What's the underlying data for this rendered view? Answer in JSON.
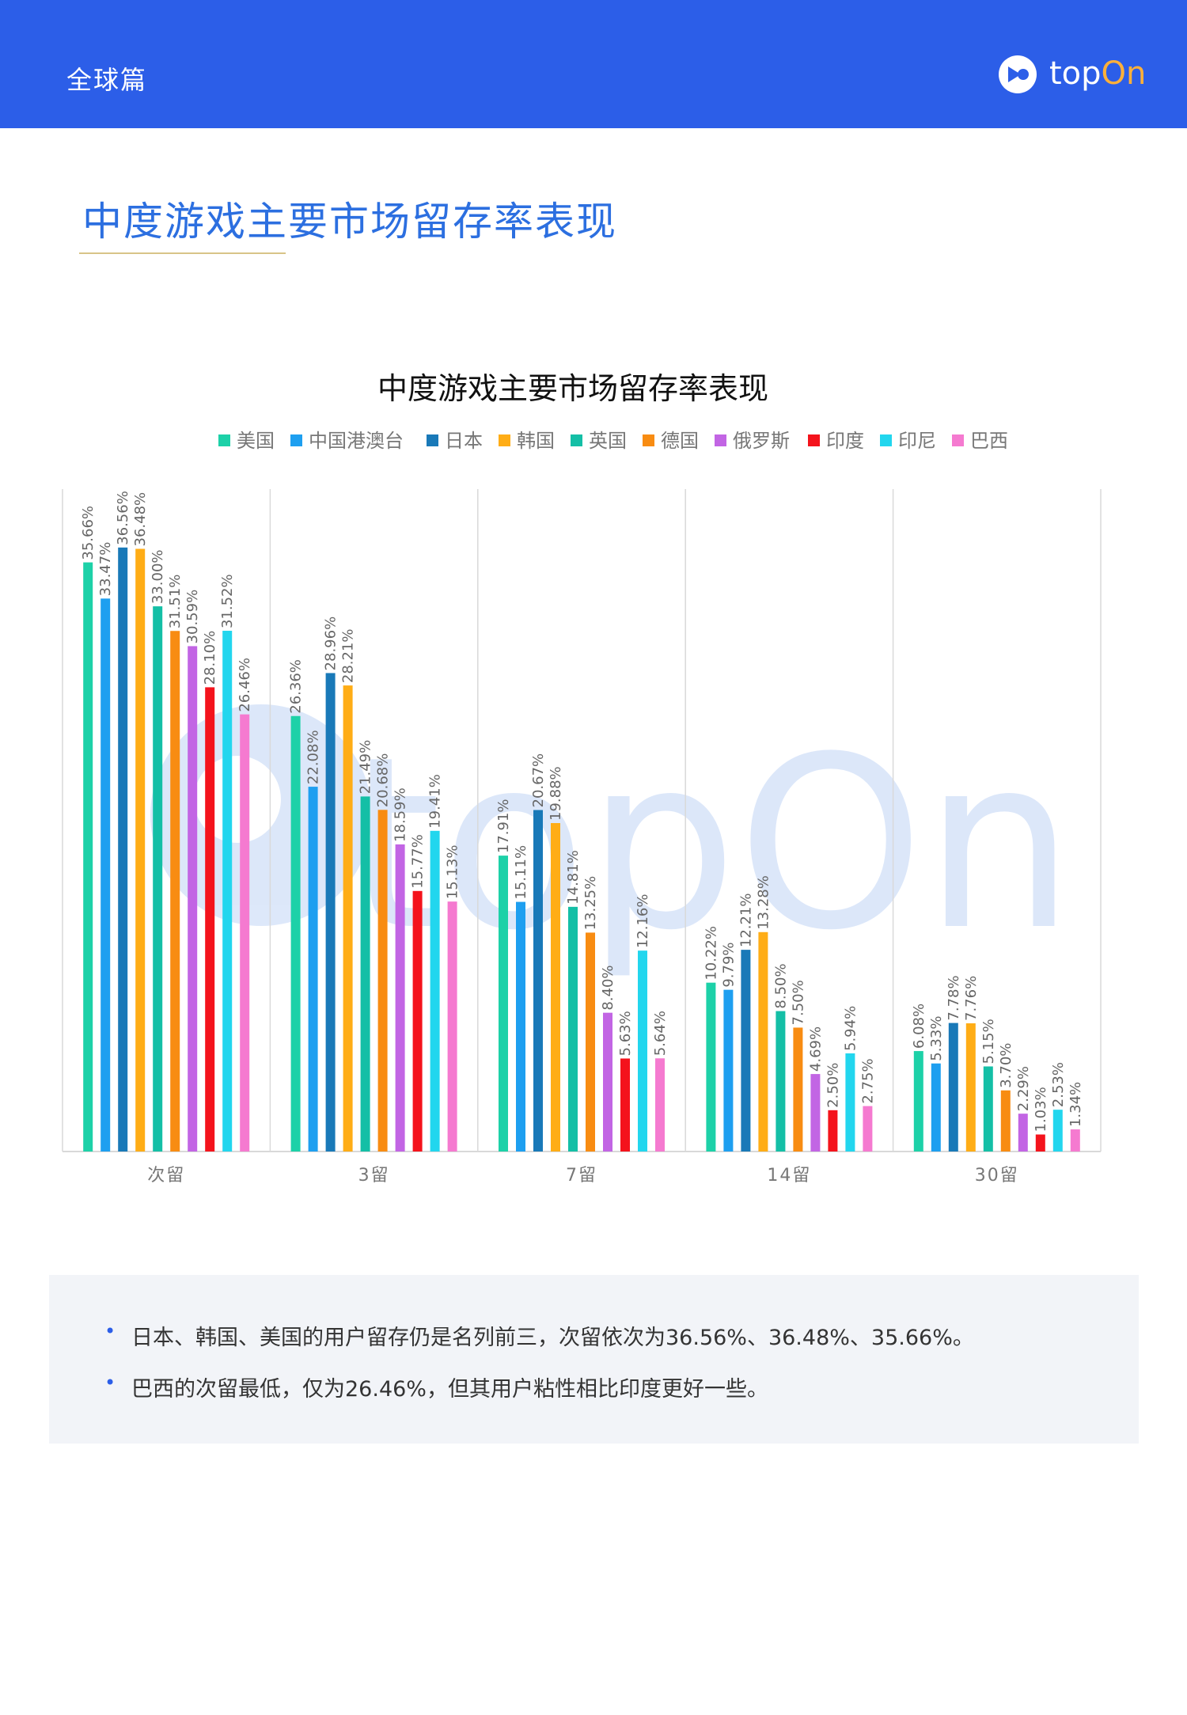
{
  "header": {
    "section": "全球篇",
    "brand_left": "top",
    "brand_right": "On"
  },
  "page_title": "中度游戏主要市场留存率表现",
  "chart_data": {
    "type": "bar",
    "title": "中度游戏主要市场留存率表现",
    "categories": [
      "次留",
      "3留",
      "7留",
      "14留",
      "30留"
    ],
    "ylim": [
      0,
      40
    ],
    "grid": "vertical separators between categories",
    "legend_position": "top",
    "value_format": "%",
    "series": [
      {
        "name": "美国",
        "color": "#1dd1a8",
        "values": [
          35.66,
          26.36,
          17.91,
          10.22,
          6.08
        ]
      },
      {
        "name": "中国港澳台",
        "color": "#1e9ff0",
        "values": [
          33.47,
          22.08,
          15.11,
          9.79,
          5.33
        ]
      },
      {
        "name": "日本",
        "color": "#1979b8",
        "values": [
          36.56,
          28.96,
          20.67,
          12.21,
          7.78
        ]
      },
      {
        "name": "韩国",
        "color": "#ffad16",
        "values": [
          36.48,
          28.21,
          19.88,
          13.28,
          7.76
        ]
      },
      {
        "name": "英国",
        "color": "#14bfa6",
        "values": [
          33.0,
          21.49,
          14.81,
          8.5,
          5.15
        ]
      },
      {
        "name": "德国",
        "color": "#f88c12",
        "values": [
          31.51,
          20.68,
          13.25,
          7.5,
          3.7
        ]
      },
      {
        "name": "俄罗斯",
        "color": "#c265e4",
        "values": [
          30.59,
          18.59,
          8.4,
          4.69,
          2.29
        ]
      },
      {
        "name": "印度",
        "color": "#f4131c",
        "values": [
          28.1,
          15.77,
          5.63,
          2.5,
          1.03
        ]
      },
      {
        "name": "印尼",
        "color": "#22d6ee",
        "values": [
          31.52,
          19.41,
          12.16,
          5.94,
          2.53
        ]
      },
      {
        "name": "巴西",
        "color": "#f57ad0",
        "values": [
          26.46,
          15.13,
          5.64,
          2.75,
          1.34
        ]
      }
    ],
    "data_labels": [
      [
        "35.66%",
        "26.36%",
        "17.91%",
        "10.22%",
        "6.08%"
      ],
      [
        "33.47%",
        "22.08%",
        "15.11%",
        "9.79%",
        "5.33%"
      ],
      [
        "36.56%",
        "28.96%",
        "20.67%",
        "12.21%",
        "7.78%"
      ],
      [
        "36.48%",
        "28.21%",
        "19.88%",
        "13.28%",
        "7.76%"
      ],
      [
        "33.00%",
        "21.49%",
        "14.81%",
        "8.50%",
        "5.15%"
      ],
      [
        "31.51%",
        "20.68%",
        "13.25%",
        "7.50%",
        "3.70%"
      ],
      [
        "30.59%",
        "18.59%",
        "8.40%",
        "4.69%",
        "2.29%"
      ],
      [
        "28.10%",
        "15.77%",
        "5.63%",
        "2.50%",
        "1.03%"
      ],
      [
        "31.52%",
        "19.41%",
        "12.16%",
        "5.94%",
        "2.53%"
      ],
      [
        "26.46%",
        "15.13%",
        "5.64%",
        "2.75%",
        "1.34%"
      ]
    ],
    "watermark": "topOn"
  },
  "notes": [
    "日本、韩国、美国的用户留存仍是名列前三，次留依次为36.56%、36.48%、35.66%。",
    "巴西的次留最低，仅为26.46%，但其用户粘性相比印度更好一些。"
  ]
}
